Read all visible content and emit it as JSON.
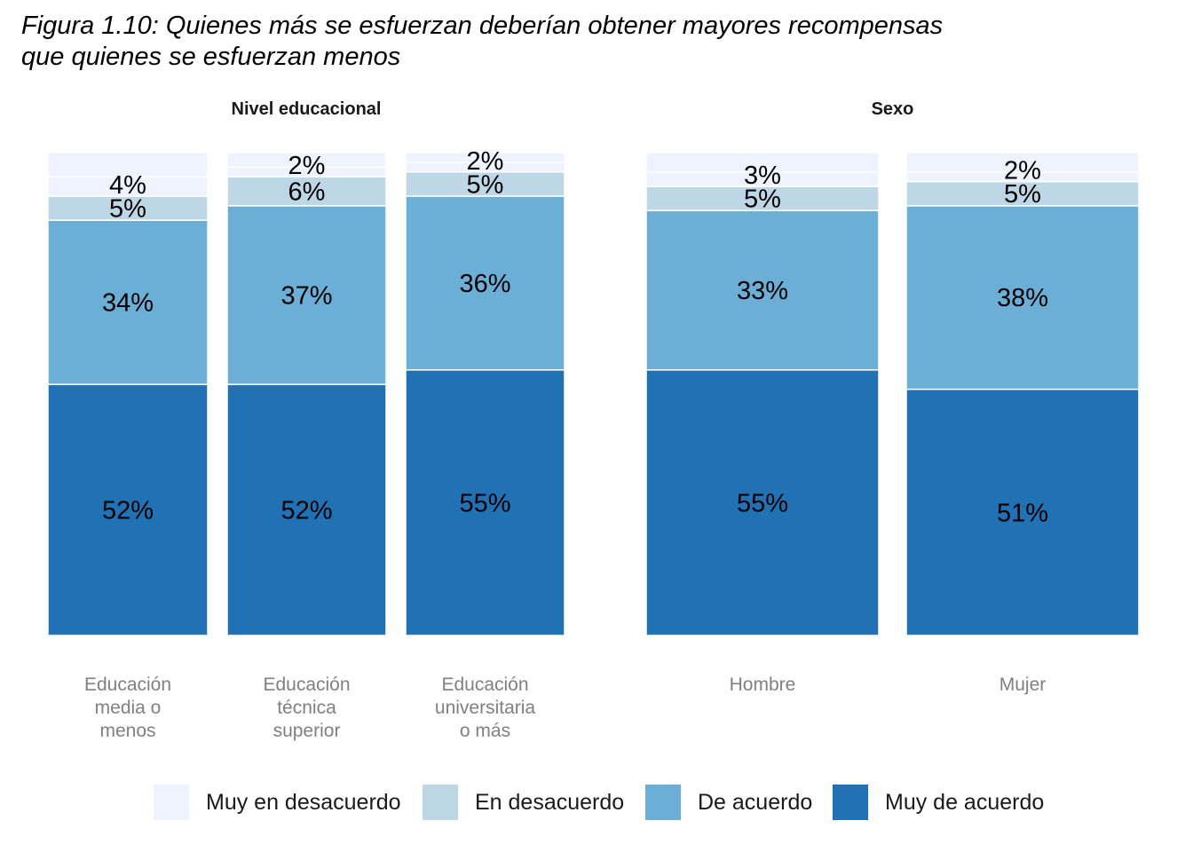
{
  "title_line1": "Figura 1.10: Quienes más se esfuerzan deberían obtener mayores recompensas",
  "title_line2": "que quienes se esfuerzan menos",
  "chart_data": {
    "type": "bar",
    "stacked": true,
    "percent_stacked": true,
    "ylim": [
      0,
      100
    ],
    "facets": [
      {
        "strip": "Nivel educacional",
        "categories": [
          [
            "Educación",
            "media o",
            "menos"
          ],
          [
            "Educación",
            "técnica",
            "superior"
          ],
          [
            "Educación",
            "universitaria",
            "o más"
          ]
        ]
      },
      {
        "strip": "Sexo",
        "categories": [
          [
            "Hombre"
          ],
          [
            "Mujer"
          ]
        ]
      }
    ],
    "series": [
      {
        "name": "Muy de acuerdo",
        "color": "#2171b5",
        "values": [
          52,
          52,
          55,
          55,
          51
        ],
        "labels": [
          "52%",
          "52%",
          "55%",
          "55%",
          "51%"
        ]
      },
      {
        "name": "De acuerdo",
        "color": "#6baed6",
        "values": [
          34,
          37,
          36,
          33,
          38
        ],
        "labels": [
          "34%",
          "37%",
          "36%",
          "33%",
          "38%"
        ]
      },
      {
        "name": "En desacuerdo",
        "color": "#bdd7e7",
        "values": [
          5,
          6,
          5,
          5,
          5
        ],
        "labels": [
          "5%",
          "6%",
          "5%",
          "5%",
          "5%"
        ]
      },
      {
        "name": "Muy en desacuerdo",
        "color": "#eff3ff",
        "values": [
          4,
          2,
          2,
          3,
          2
        ],
        "labels": [
          "4%",
          "2%",
          "2%",
          "3%",
          "2%"
        ]
      }
    ],
    "remainder_color": "#eff3ff",
    "legend_position": "bottom",
    "legend": [
      {
        "name": "Muy en desacuerdo",
        "color": "#eff3ff"
      },
      {
        "name": "En desacuerdo",
        "color": "#bdd7e7"
      },
      {
        "name": "De acuerdo",
        "color": "#6baed6"
      },
      {
        "name": "Muy de acuerdo",
        "color": "#2171b5"
      }
    ]
  }
}
